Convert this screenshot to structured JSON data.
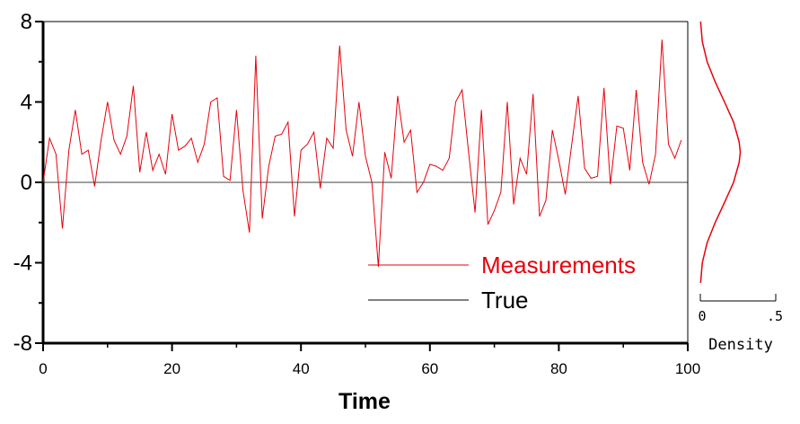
{
  "chart_data": [
    {
      "type": "line",
      "xlabel": "Time",
      "ylabel": "",
      "xlim": [
        0,
        100
      ],
      "ylim": [
        -8,
        8
      ],
      "x_ticks": [
        "0",
        "20",
        "40",
        "60",
        "80",
        "100"
      ],
      "y_ticks": [
        "8",
        "4",
        "0",
        "-4",
        "-8"
      ],
      "grid": false,
      "legend_position": "bottom-right",
      "series": [
        {
          "name": "Measurements",
          "color": "#e8000b",
          "x": [
            0,
            1,
            2,
            3,
            4,
            5,
            6,
            7,
            8,
            9,
            10,
            11,
            12,
            13,
            14,
            15,
            16,
            17,
            18,
            19,
            20,
            21,
            22,
            23,
            24,
            25,
            26,
            27,
            28,
            29,
            30,
            31,
            32,
            33,
            34,
            35,
            36,
            37,
            38,
            39,
            40,
            41,
            42,
            43,
            44,
            45,
            46,
            47,
            48,
            49,
            50,
            51,
            52,
            53,
            54,
            55,
            56,
            57,
            58,
            59,
            60,
            61,
            62,
            63,
            64,
            65,
            66,
            67,
            68,
            69,
            70,
            71,
            72,
            73,
            74,
            75,
            76,
            77,
            78,
            79,
            80,
            81,
            82,
            83,
            84,
            85,
            86,
            87,
            88,
            89,
            90,
            91,
            92,
            93,
            94,
            95,
            96,
            97,
            98,
            99
          ],
          "values": [
            0.0,
            2.2,
            1.4,
            -2.3,
            1.6,
            3.6,
            1.4,
            1.6,
            -0.2,
            2.1,
            4.0,
            2.1,
            1.4,
            2.3,
            4.8,
            0.5,
            2.5,
            0.6,
            1.4,
            0.4,
            3.4,
            1.6,
            1.8,
            2.2,
            1.0,
            1.9,
            4.0,
            4.2,
            0.3,
            0.1,
            3.6,
            -0.4,
            -2.5,
            6.3,
            -1.8,
            0.8,
            2.3,
            2.4,
            3.0,
            -1.7,
            1.6,
            1.9,
            2.5,
            -0.3,
            2.2,
            1.7,
            6.8,
            2.6,
            1.3,
            4.0,
            1.3,
            0.0,
            -4.2,
            1.5,
            0.2,
            4.3,
            2.0,
            2.6,
            -0.5,
            0.0,
            0.9,
            0.8,
            0.6,
            1.2,
            4.0,
            4.6,
            1.5,
            -1.5,
            3.6,
            -2.1,
            -1.4,
            -0.5,
            4.0,
            -1.1,
            1.2,
            0.4,
            4.4,
            -1.7,
            -0.9,
            2.6,
            1.1,
            -0.6,
            1.9,
            4.3,
            0.7,
            0.2,
            0.3,
            4.7,
            -0.1,
            2.8,
            2.7,
            0.6,
            4.6,
            1.0,
            -0.1,
            1.4,
            7.1,
            1.9,
            1.2,
            2.1
          ]
        },
        {
          "name": "True",
          "color": "#000000",
          "x": [
            0,
            100
          ],
          "values": [
            0,
            0
          ]
        }
      ]
    },
    {
      "type": "line",
      "xlabel": "Density",
      "x_ticks": [
        "0",
        ".5"
      ],
      "xlim": [
        0,
        0.5
      ],
      "grid": false,
      "series": [
        {
          "color": "#e8000b",
          "y": [
            -5,
            -4,
            -3,
            -2,
            -1,
            0,
            1,
            1.5,
            2,
            3,
            4,
            5,
            6,
            7,
            8
          ],
          "values": [
            0.002,
            0.013,
            0.045,
            0.098,
            0.16,
            0.22,
            0.258,
            0.265,
            0.258,
            0.22,
            0.16,
            0.098,
            0.045,
            0.013,
            0.002
          ]
        }
      ]
    }
  ]
}
